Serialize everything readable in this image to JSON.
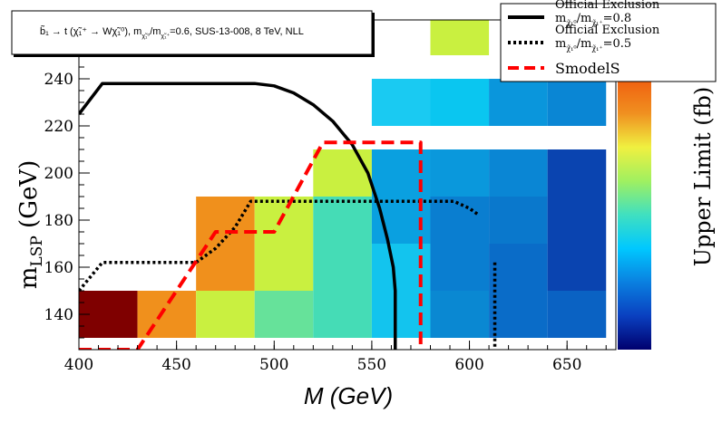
{
  "chart_data": {
    "type": "heatmap",
    "title": "b̃₁ → t (χ̃₁⁺ → W χ̃₁⁰), m_χ̃₁⁰/m_χ̃₁⁺ = 0.6, SUS-13-008, 8 TeV, NLL",
    "title_parts": {
      "process": "b̃₁ → t (χ̃₁⁺ → Wχ̃₁⁰), m",
      "sub1": "χ̃₁⁰",
      "slash_m": "/m",
      "sub2": "χ̃₁⁺",
      "rest": "=0.6, SUS-13-008, 8 TeV, NLL"
    },
    "xlabel": "M (GeV)",
    "ylabel": {
      "main": "m",
      "sub": "LSP",
      "unit": " (GeV)"
    },
    "zlabel": "Upper Limit (fb)",
    "xlim": [
      400,
      675
    ],
    "ylim": [
      125,
      265
    ],
    "xticks": [
      "400",
      "450",
      "500",
      "550",
      "600",
      "650"
    ],
    "yticks": [
      "140",
      "160",
      "180",
      "200",
      "220",
      "240",
      "260"
    ],
    "cell_width": 30,
    "cell_height": 20,
    "cells": [
      {
        "x": 415,
        "y": 140,
        "color": "#7f0000"
      },
      {
        "x": 445,
        "y": 140,
        "color": "#f0901c"
      },
      {
        "x": 475,
        "y": 140,
        "color": "#c9f040"
      },
      {
        "x": 505,
        "y": 140,
        "color": "#66e29a"
      },
      {
        "x": 535,
        "y": 140,
        "color": "#45dcb6"
      },
      {
        "x": 565,
        "y": 140,
        "color": "#13c4ee"
      },
      {
        "x": 595,
        "y": 140,
        "color": "#0a88d2"
      },
      {
        "x": 625,
        "y": 140,
        "color": "#0a6cc8"
      },
      {
        "x": 655,
        "y": 140,
        "color": "#0a62c3"
      },
      {
        "x": 475,
        "y": 160,
        "color": "#f0901c"
      },
      {
        "x": 505,
        "y": 160,
        "color": "#c9f040"
      },
      {
        "x": 535,
        "y": 160,
        "color": "#45dcb6"
      },
      {
        "x": 565,
        "y": 160,
        "color": "#13c4ee"
      },
      {
        "x": 595,
        "y": 160,
        "color": "#0a7ed0"
      },
      {
        "x": 625,
        "y": 160,
        "color": "#0a6cc8"
      },
      {
        "x": 655,
        "y": 160,
        "color": "#0a44b0"
      },
      {
        "x": 475,
        "y": 180,
        "color": "#f0901c"
      },
      {
        "x": 505,
        "y": 180,
        "color": "#c9f040"
      },
      {
        "x": 535,
        "y": 180,
        "color": "#45dcb6"
      },
      {
        "x": 565,
        "y": 180,
        "color": "#0aa0e0"
      },
      {
        "x": 595,
        "y": 180,
        "color": "#0a7ed0"
      },
      {
        "x": 625,
        "y": 180,
        "color": "#0a78cc"
      },
      {
        "x": 655,
        "y": 180,
        "color": "#0a44b0"
      },
      {
        "x": 535,
        "y": 200,
        "color": "#c9f040"
      },
      {
        "x": 565,
        "y": 200,
        "color": "#0aa0e0"
      },
      {
        "x": 595,
        "y": 200,
        "color": "#0a98dc"
      },
      {
        "x": 625,
        "y": 200,
        "color": "#0a86d4"
      },
      {
        "x": 655,
        "y": 200,
        "color": "#0a44b0"
      },
      {
        "x": 565,
        "y": 230,
        "color": "#1acaf2"
      },
      {
        "x": 595,
        "y": 230,
        "color": "#0ac6f0"
      },
      {
        "x": 625,
        "y": 230,
        "color": "#0a96dc"
      },
      {
        "x": 655,
        "y": 230,
        "color": "#0a86d4"
      },
      {
        "x": 595,
        "y": 260,
        "color": "#c9f040"
      }
    ],
    "series": [
      {
        "name": "Official Exclusion m_χ̃₁⁰/m_χ̃₁⁺=0.8",
        "style": "solid",
        "color": "#000000",
        "x": [
          400,
          412,
          420,
          440,
          460,
          480,
          490,
          500,
          510,
          520,
          530,
          540,
          548,
          554,
          558,
          561,
          562,
          562,
          562
        ],
        "y": [
          225,
          238,
          238,
          238,
          238,
          238,
          238,
          237,
          234,
          229,
          222,
          212,
          200,
          185,
          172,
          160,
          150,
          138,
          125
        ]
      },
      {
        "name": "Official Exclusion m_χ̃₁⁰/m_χ̃₁⁺=0.5",
        "style": "dotted",
        "color": "#000000",
        "x": [
          400,
          410,
          412,
          440,
          460,
          470,
          480,
          488,
          500,
          520,
          540,
          560,
          580,
          592,
          600,
          605
        ],
        "y": [
          150,
          160,
          162,
          162,
          162,
          168,
          177,
          188,
          188,
          188,
          188,
          188,
          188,
          188,
          185,
          182
        ]
      },
      {
        "name": "Official Exclusion m_χ̃₁⁰/m_χ̃₁⁺=0.5 (branch)",
        "style": "dotted",
        "color": "#000000",
        "x": [
          613,
          613
        ],
        "y": [
          162,
          125
        ]
      },
      {
        "name": "SmodelS",
        "style": "dashed",
        "color": "#ff0000",
        "x": [
          400,
          430,
          470,
          490,
          500,
          525,
          575,
          575
        ],
        "y": [
          125,
          125,
          175,
          175,
          175,
          213,
          213,
          125
        ]
      }
    ],
    "colorbar": [
      "#00006e",
      "#0a40c0",
      "#0a80e0",
      "#00c8ff",
      "#40e0c0",
      "#a0f060",
      "#f0f040",
      "#f09020",
      "#f06010"
    ],
    "legend": {
      "placement": "top-right",
      "items": [
        {
          "label_top": "Official Exclusion",
          "m": "m",
          "sub1": "χ̃₁⁰",
          "mid": "/m",
          "sub2": "χ̃₁⁺",
          "val": "=0.8",
          "style": "solid",
          "color": "#000000"
        },
        {
          "label_top": "Official Exclusion",
          "m": "m",
          "sub1": "χ̃₁⁰",
          "mid": "/m",
          "sub2": "χ̃₁⁺",
          "val": "=0.5",
          "style": "dotted",
          "color": "#000000"
        },
        {
          "label": "SmodelS",
          "style": "dashed",
          "color": "#ff0000"
        }
      ]
    }
  }
}
